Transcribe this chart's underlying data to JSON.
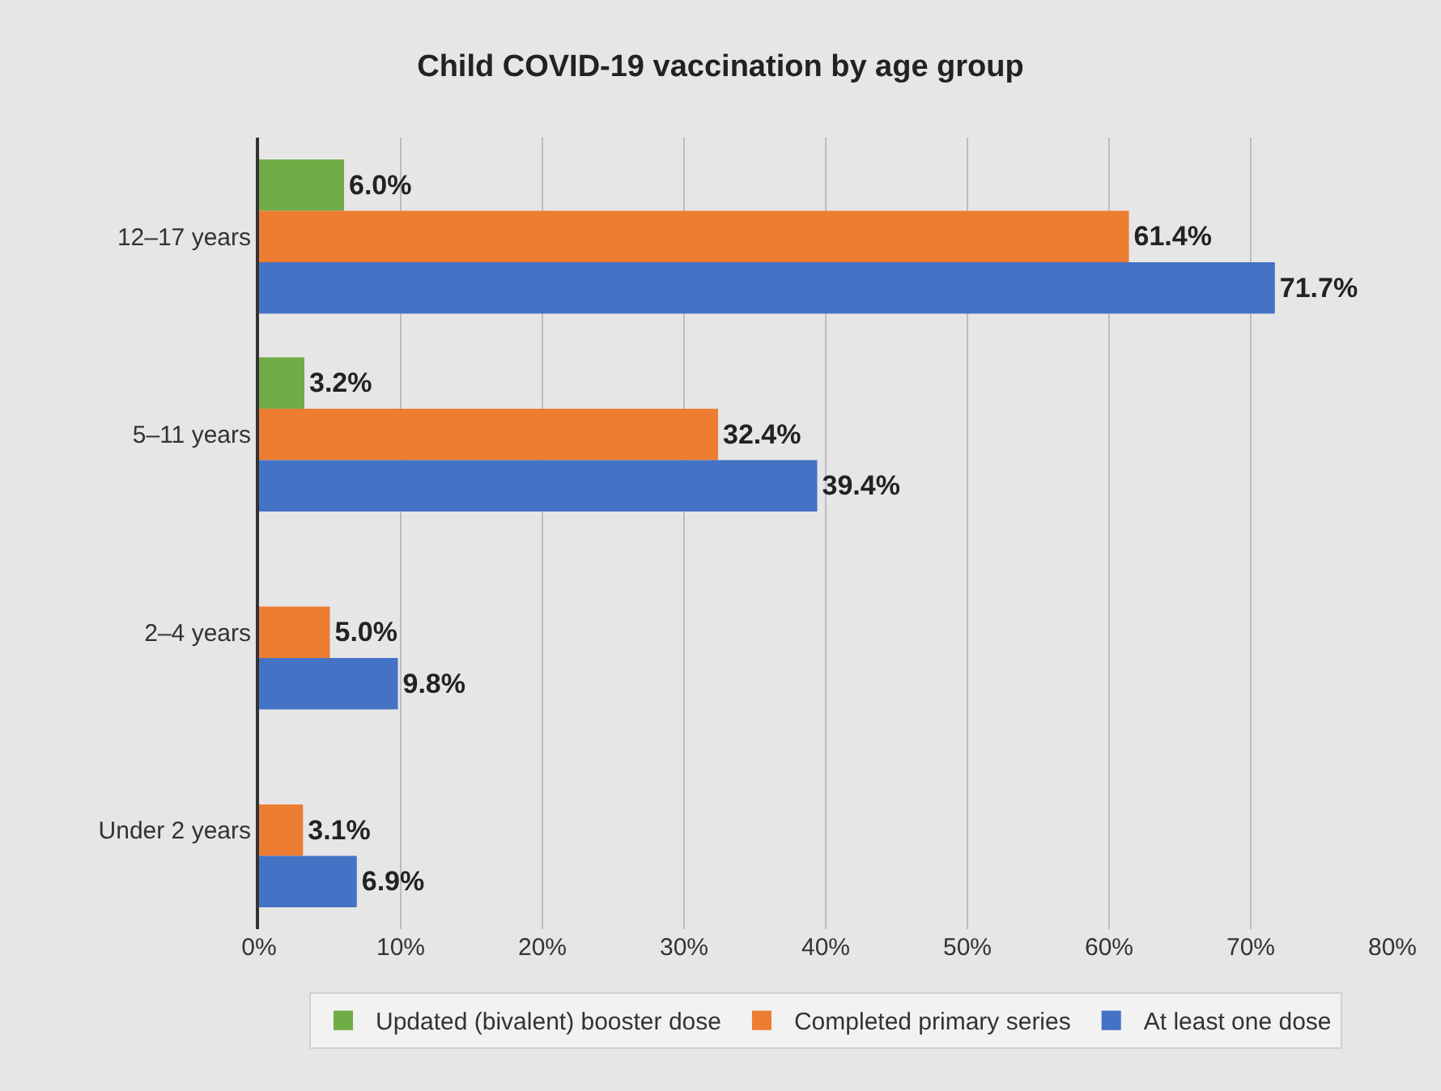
{
  "chart_data": {
    "type": "bar",
    "orientation": "horizontal",
    "title": "Child COVID-19 vaccination by age group",
    "categories": [
      "12–17 years",
      "5–11 years",
      "2–4 years",
      "Under 2 years"
    ],
    "series": [
      {
        "name": "Updated (bivalent) booster dose",
        "color": "#70ad47",
        "values": [
          6.0,
          3.2,
          null,
          null
        ],
        "value_labels": [
          "6.0%",
          "3.2%",
          null,
          null
        ]
      },
      {
        "name": "Completed primary series",
        "color": "#ed7d31",
        "values": [
          61.4,
          32.4,
          5.0,
          3.1
        ],
        "value_labels": [
          "61.4%",
          "32.4%",
          "5.0%",
          "3.1%"
        ]
      },
      {
        "name": "At least one dose",
        "color": "#4472c4",
        "values": [
          71.7,
          39.4,
          9.8,
          6.9
        ],
        "value_labels": [
          "71.7%",
          "39.4%",
          "9.8%",
          "6.9%"
        ]
      }
    ],
    "xlim": [
      0,
      80
    ],
    "xticks": [
      {
        "value": 0,
        "label": "0%"
      },
      {
        "value": 10,
        "label": "10%"
      },
      {
        "value": 20,
        "label": "20%"
      },
      {
        "value": 30,
        "label": "30%"
      },
      {
        "value": 40,
        "label": "40%"
      },
      {
        "value": 50,
        "label": "50%"
      },
      {
        "value": 60,
        "label": "60%"
      },
      {
        "value": 70,
        "label": "70%"
      },
      {
        "value": 80,
        "label": "80%"
      }
    ],
    "grid": "x",
    "legend": "bottom"
  }
}
